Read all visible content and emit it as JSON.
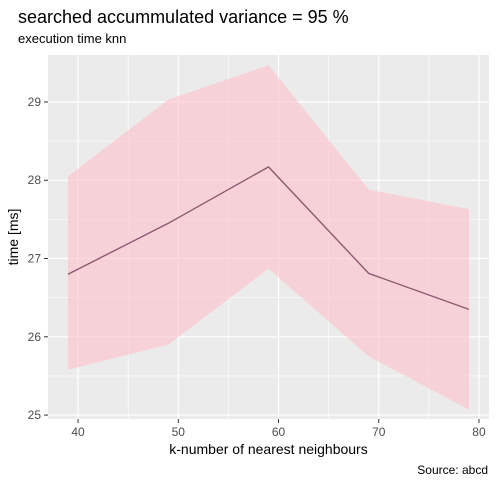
{
  "chart_data": {
    "type": "line",
    "title": "searched accummulated variance =  95 %",
    "subtitle": "execution time knn",
    "xlabel": "k-number of nearest neighbours",
    "ylabel": "time [ms]",
    "caption": "Source: abcd",
    "xlim": [
      37,
      81
    ],
    "ylim": [
      24.95,
      29.6
    ],
    "x_ticks": [
      40,
      50,
      60,
      70,
      80
    ],
    "x_tick_labels": [
      "40",
      "50",
      "60",
      "70",
      "80"
    ],
    "y_ticks": [
      25,
      26,
      27,
      28,
      29
    ],
    "y_tick_labels": [
      "25",
      "26",
      "27",
      "28",
      "29"
    ],
    "grid": true,
    "legend": "none",
    "x": [
      39,
      49,
      59,
      69,
      79
    ],
    "series": [
      {
        "values": [
          26.8,
          27.45,
          28.17,
          26.81,
          26.35
        ],
        "lower": [
          25.58,
          25.9,
          26.87,
          25.75,
          25.07
        ],
        "upper": [
          28.05,
          29.03,
          29.47,
          27.88,
          27.63
        ],
        "line_color": "#8b5a6e",
        "band_color": "#ffc0cb"
      }
    ],
    "panel_background": "#ebebeb",
    "grid_color": "#ffffff"
  }
}
